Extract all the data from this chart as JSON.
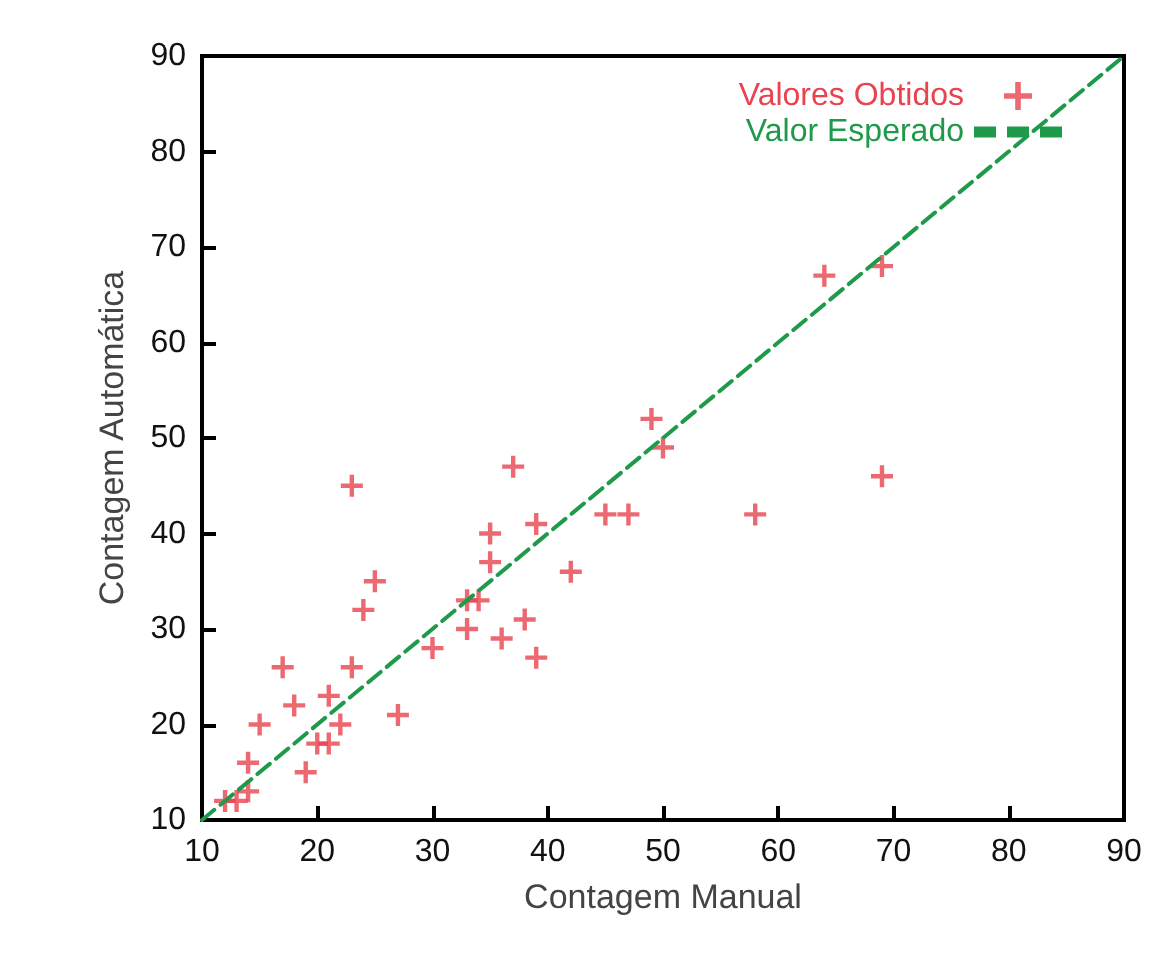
{
  "chart_data": {
    "type": "scatter",
    "xlabel": "Contagem Manual",
    "ylabel": "Contagem Automática",
    "xlim": [
      10,
      90
    ],
    "xticks": [
      10,
      20,
      30,
      40,
      50,
      60,
      70,
      80,
      90
    ],
    "ylim": [
      10,
      90
    ],
    "yticks": [
      10,
      20,
      30,
      40,
      50,
      60,
      70,
      80,
      90
    ],
    "grid": false,
    "legend": "top right",
    "marker": "cross",
    "series": [
      {
        "name": "Valores Obtidos",
        "color": "#e8434f",
        "x": [
          12,
          13,
          14,
          14,
          15,
          17,
          18,
          19,
          20,
          21,
          21,
          22,
          23,
          23,
          24,
          25,
          27,
          30,
          33,
          33,
          34,
          35,
          35,
          36,
          37,
          38,
          39,
          39,
          42,
          45,
          47,
          49,
          50,
          58,
          64,
          69,
          69
        ],
        "values": [
          12,
          12,
          13,
          16,
          20,
          26,
          22,
          15,
          18,
          18,
          23,
          20,
          26,
          45,
          32,
          35,
          21,
          28,
          30,
          33,
          33,
          37,
          40,
          29,
          47,
          31,
          27,
          41,
          36,
          42,
          42,
          52,
          49,
          42,
          67,
          68,
          46
        ]
      },
      {
        "name": "Valor Esperado",
        "color": "#1e9a4a",
        "type": "line",
        "marker": "none",
        "line_style": "dashed",
        "x": [
          10,
          90
        ],
        "values": [
          10,
          90
        ]
      }
    ]
  }
}
